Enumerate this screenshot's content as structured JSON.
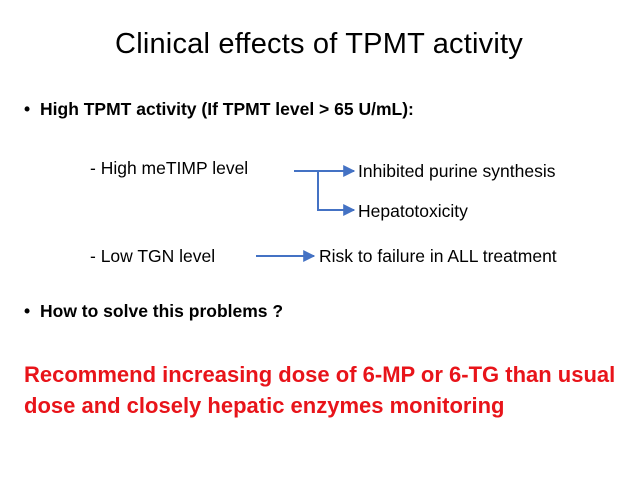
{
  "slide": {
    "title": "Clinical effects of TPMT activity",
    "bullet_symbol": "•",
    "bullets": [
      {
        "text": "High TPMT activity (If TPMT level > 65 U/mL):"
      },
      {
        "text": "How to solve this problems ?"
      }
    ],
    "flow": {
      "row1_left": "- High meTIMP level",
      "row1_outcome_a": "Inhibited purine synthesis",
      "row1_outcome_b": "Hepatotoxicity",
      "row2_left": "- Low TGN level",
      "row2_outcome": "Risk to failure in ALL treatment"
    },
    "recommendation": "Recommend increasing dose of 6-MP or 6-TG than usual dose and closely hepatic enzymes monitoring",
    "colors": {
      "arrow": "#4472c4",
      "recommendation": "#e8141a"
    }
  }
}
